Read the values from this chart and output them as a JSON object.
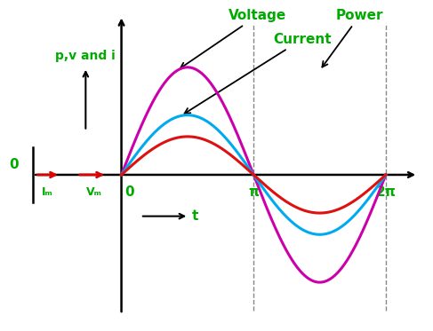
{
  "bg_color": "#ffffff",
  "voltage_color": "#cc00aa",
  "current_color": "#00aaee",
  "power_color": "#dd1111",
  "voltage_amplitude": 1.35,
  "current_amplitude": 0.75,
  "power_amplitude": 0.48,
  "label_color": "#00aa00",
  "arrow_color": "#000000",
  "red_arrow_color": "#dd0000",
  "dashed_color": "#888888",
  "num_points": 600,
  "voltage_label": "Voltage",
  "current_label": "Current",
  "power_label": "Power",
  "yaxis_label": "p,v and i",
  "xaxis_label": "t",
  "zero_left": "0",
  "zero_right": "0",
  "Im_label": "Iₘ",
  "Vm_label": "Vₘ",
  "pi_label": "π",
  "twopi_label": "2π",
  "xlim_left": -2.5,
  "xlim_right": 7.2,
  "ylim_bottom": -1.85,
  "ylim_top": 2.05,
  "left_axis_x": -2.1,
  "main_axis_x": 0.0,
  "pi_x": 3.14159,
  "twopi_x": 6.28318
}
